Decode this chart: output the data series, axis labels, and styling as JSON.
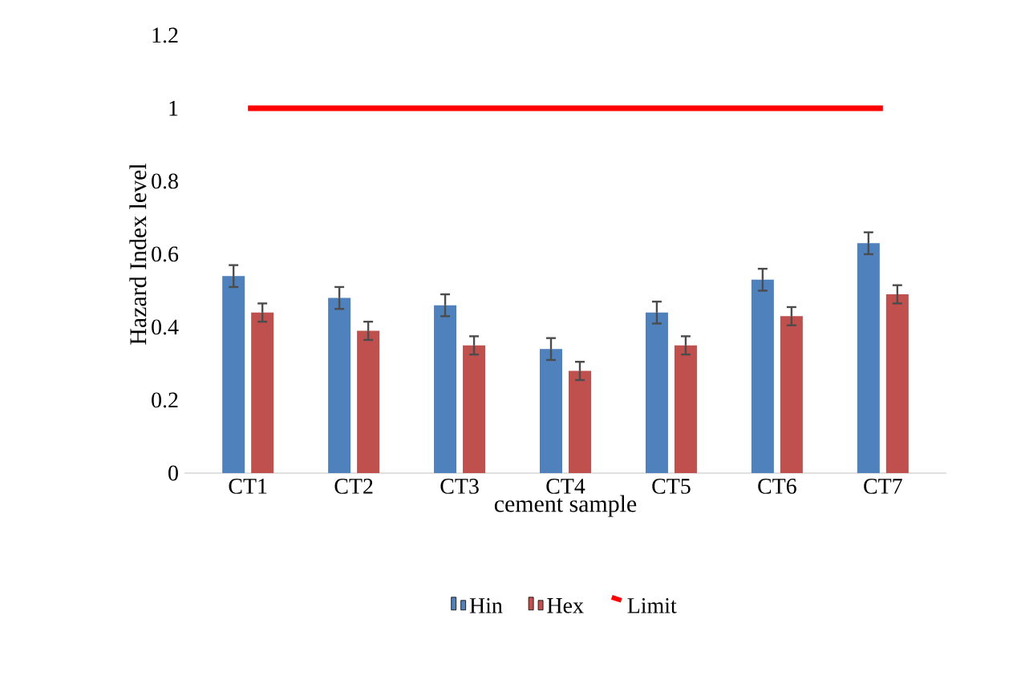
{
  "chart_data": {
    "type": "bar",
    "xlabel": "cement sample",
    "ylabel": "Hazard Index level",
    "categories": [
      "CT1",
      "CT2",
      "CT3",
      "CT4",
      "CT5",
      "CT6",
      "CT7"
    ],
    "series": [
      {
        "name": "Hin",
        "color": "#4f81bd",
        "values": [
          0.54,
          0.48,
          0.46,
          0.34,
          0.44,
          0.53,
          0.63
        ],
        "errors": [
          0.03,
          0.03,
          0.03,
          0.03,
          0.03,
          0.03,
          0.03
        ]
      },
      {
        "name": "Hex",
        "color": "#c0504d",
        "values": [
          0.44,
          0.39,
          0.35,
          0.28,
          0.35,
          0.43,
          0.49
        ],
        "errors": [
          0.025,
          0.025,
          0.025,
          0.025,
          0.025,
          0.025,
          0.025
        ]
      },
      {
        "name": "Limit",
        "type": "line",
        "color": "#ff0000",
        "values": [
          1,
          1,
          1,
          1,
          1,
          1,
          1
        ]
      }
    ],
    "ylim": [
      0,
      1.2
    ],
    "yticks": [
      0,
      0.2,
      0.4,
      0.6,
      0.8,
      1,
      1.2
    ],
    "legend": "bottom"
  }
}
